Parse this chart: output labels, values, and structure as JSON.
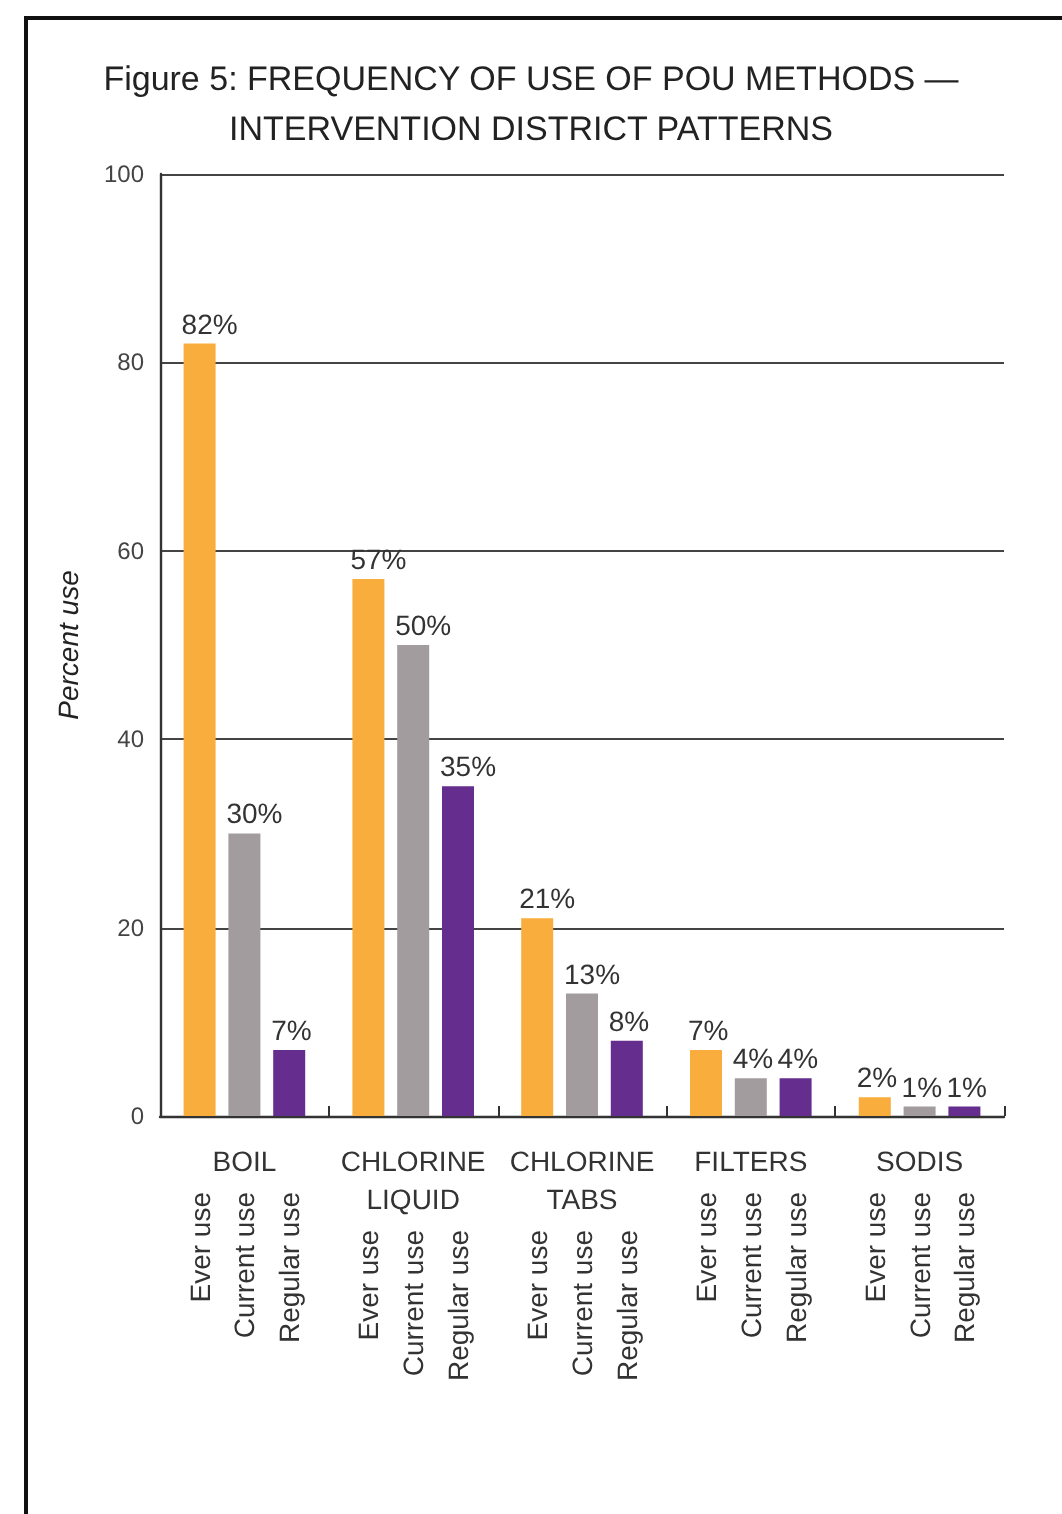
{
  "chart_data": {
    "type": "bar",
    "title": "Figure 5: FREQUENCY OF USE OF POU METHODS — INTERVENTION DISTRICT PATTERNS",
    "ylabel": "Percent use",
    "categories": [
      "BOIL",
      "CHLORINE LIQUID",
      "CHLORINE TABS",
      "FILTERS",
      "SODIS"
    ],
    "series": [
      {
        "name": "Ever use",
        "color": "#f9ad3d",
        "values": [
          82,
          57,
          21,
          7,
          2
        ],
        "value_labels": [
          "82%",
          "57%",
          "21%",
          "7%",
          "2%"
        ]
      },
      {
        "name": "Current use",
        "color": "#a39c9f",
        "values": [
          30,
          50,
          13,
          4,
          1
        ],
        "value_labels": [
          "30%",
          "50%",
          "13%",
          "4%",
          "1%"
        ]
      },
      {
        "name": "Regular use",
        "color": "#652d8e",
        "values": [
          7,
          35,
          8,
          4,
          1
        ],
        "value_labels": [
          "7%",
          "35%",
          "8%",
          "4%",
          "1%"
        ]
      }
    ],
    "ylim": [
      0,
      100
    ],
    "yticks": [
      0,
      20,
      40,
      60,
      80,
      100
    ],
    "grid": "y"
  }
}
